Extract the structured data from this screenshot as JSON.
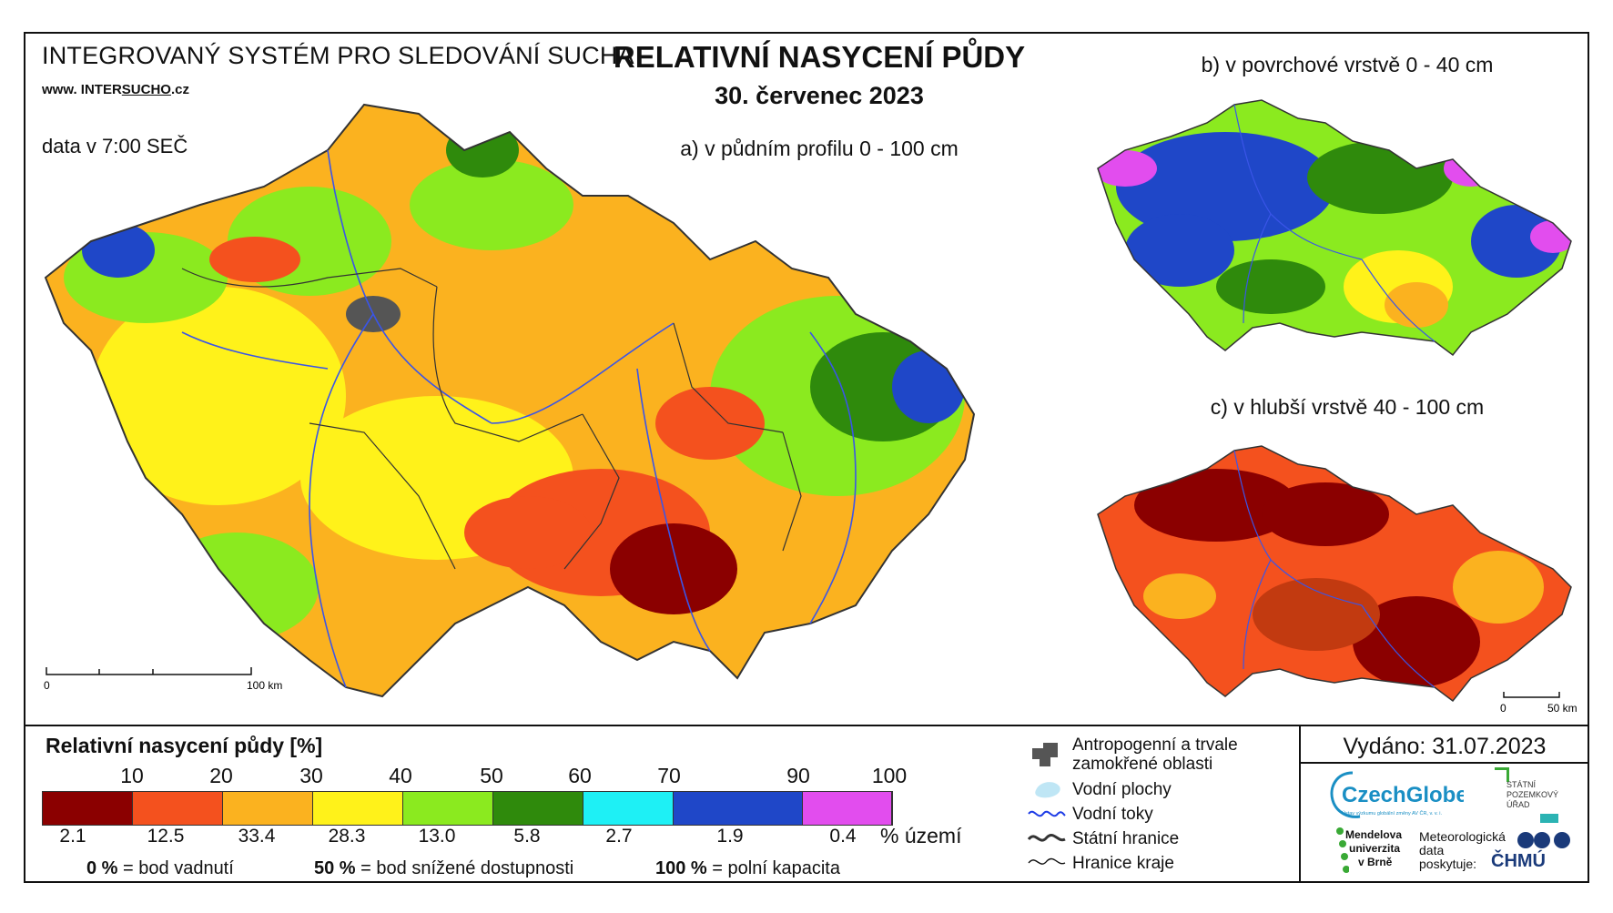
{
  "header": {
    "system_title": "INTEGROVANÝ SYSTÉM PRO SLEDOVÁNÍ SUCHA",
    "website_prefix": "www. INTER",
    "website_underlined": "SUCHO",
    "website_suffix": ".cz",
    "data_time": "data v 7:00 SEČ",
    "main_title": "RELATIVNÍ NASYCENÍ PŮDY",
    "date": "30. červenec 2023"
  },
  "maps": {
    "a_title": "a) v půdním profilu 0 - 100 cm",
    "b_title": "b) v povrchové vrstvě 0 - 40 cm",
    "c_title": "c) v hlubší vrstvě 40 - 100 cm",
    "scale_main_start": "0",
    "scale_main_end": "100 km",
    "scale_small_start": "0",
    "scale_small_end": "50 km"
  },
  "legend": {
    "title": "Relativní nasycení půdy [%]",
    "ticks": [
      "10",
      "20",
      "30",
      "40",
      "50",
      "60",
      "70",
      "90",
      "100"
    ],
    "classes": [
      {
        "color": "#8b0000",
        "pct": "2.1"
      },
      {
        "color": "#f4511e",
        "pct": "12.5"
      },
      {
        "color": "#fbb21f",
        "pct": "33.4"
      },
      {
        "color": "#fff21a",
        "pct": "28.3"
      },
      {
        "color": "#8bea1f",
        "pct": "13.0"
      },
      {
        "color": "#2f8a0c",
        "pct": "5.8"
      },
      {
        "color": "#1ef0f5",
        "pct": "2.7"
      },
      {
        "color": "#1f47c8",
        "pct": "1.9"
      },
      {
        "color": "#e24dee",
        "pct": "0.4"
      }
    ],
    "pct_unit": "% území",
    "note1_bold": "0 %",
    "note1_text": "= bod vadnutí",
    "note2_bold": "50 %",
    "note2_text": "= bod snížené dostupnosti",
    "note3_bold": "100 %",
    "note3_text": "= polní kapacita"
  },
  "map_legend": {
    "urban": "Antropogenní a trvale zamokřené oblasti",
    "water_bodies": "Vodní plochy",
    "rivers": "Vodní toky",
    "state_border": "Státní hranice",
    "region_border": "Hranice kraje"
  },
  "footer": {
    "issued": "Vydáno: 31.07.2023",
    "czechglobe": "CzechGlobe",
    "czechglobe_sub": "Ústav výzkumu globální změny AV ČR, v. v. i.",
    "spu_line1": "STÁTNÍ",
    "spu_line2": "POZEMKOVÝ",
    "spu_line3": "ÚŘAD",
    "mendel_line1": "Mendelova",
    "mendel_line2": "univerzita",
    "mendel_line3": "v Brně",
    "met_line1": "Meteorologická",
    "met_line2": "data",
    "met_line3": "poskytuje:",
    "chmu": "ČHMÚ"
  }
}
